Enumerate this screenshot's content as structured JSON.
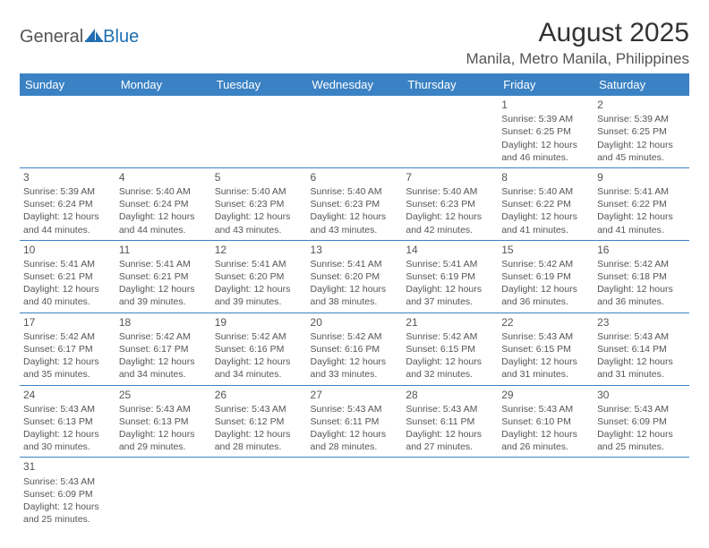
{
  "logo": {
    "general": "General",
    "blue": "Blue"
  },
  "title": "August 2025",
  "location": "Manila, Metro Manila, Philippines",
  "header_bg": "#3b82c4",
  "dayHeaders": [
    "Sunday",
    "Monday",
    "Tuesday",
    "Wednesday",
    "Thursday",
    "Friday",
    "Saturday"
  ],
  "weeks": [
    [
      null,
      null,
      null,
      null,
      null,
      {
        "day": "1",
        "sunrise": "5:39 AM",
        "sunset": "6:25 PM",
        "dl_h": "12",
        "dl_m": "46"
      },
      {
        "day": "2",
        "sunrise": "5:39 AM",
        "sunset": "6:25 PM",
        "dl_h": "12",
        "dl_m": "45"
      }
    ],
    [
      {
        "day": "3",
        "sunrise": "5:39 AM",
        "sunset": "6:24 PM",
        "dl_h": "12",
        "dl_m": "44"
      },
      {
        "day": "4",
        "sunrise": "5:40 AM",
        "sunset": "6:24 PM",
        "dl_h": "12",
        "dl_m": "44"
      },
      {
        "day": "5",
        "sunrise": "5:40 AM",
        "sunset": "6:23 PM",
        "dl_h": "12",
        "dl_m": "43"
      },
      {
        "day": "6",
        "sunrise": "5:40 AM",
        "sunset": "6:23 PM",
        "dl_h": "12",
        "dl_m": "43"
      },
      {
        "day": "7",
        "sunrise": "5:40 AM",
        "sunset": "6:23 PM",
        "dl_h": "12",
        "dl_m": "42"
      },
      {
        "day": "8",
        "sunrise": "5:40 AM",
        "sunset": "6:22 PM",
        "dl_h": "12",
        "dl_m": "41"
      },
      {
        "day": "9",
        "sunrise": "5:41 AM",
        "sunset": "6:22 PM",
        "dl_h": "12",
        "dl_m": "41"
      }
    ],
    [
      {
        "day": "10",
        "sunrise": "5:41 AM",
        "sunset": "6:21 PM",
        "dl_h": "12",
        "dl_m": "40"
      },
      {
        "day": "11",
        "sunrise": "5:41 AM",
        "sunset": "6:21 PM",
        "dl_h": "12",
        "dl_m": "39"
      },
      {
        "day": "12",
        "sunrise": "5:41 AM",
        "sunset": "6:20 PM",
        "dl_h": "12",
        "dl_m": "39"
      },
      {
        "day": "13",
        "sunrise": "5:41 AM",
        "sunset": "6:20 PM",
        "dl_h": "12",
        "dl_m": "38"
      },
      {
        "day": "14",
        "sunrise": "5:41 AM",
        "sunset": "6:19 PM",
        "dl_h": "12",
        "dl_m": "37"
      },
      {
        "day": "15",
        "sunrise": "5:42 AM",
        "sunset": "6:19 PM",
        "dl_h": "12",
        "dl_m": "36"
      },
      {
        "day": "16",
        "sunrise": "5:42 AM",
        "sunset": "6:18 PM",
        "dl_h": "12",
        "dl_m": "36"
      }
    ],
    [
      {
        "day": "17",
        "sunrise": "5:42 AM",
        "sunset": "6:17 PM",
        "dl_h": "12",
        "dl_m": "35"
      },
      {
        "day": "18",
        "sunrise": "5:42 AM",
        "sunset": "6:17 PM",
        "dl_h": "12",
        "dl_m": "34"
      },
      {
        "day": "19",
        "sunrise": "5:42 AM",
        "sunset": "6:16 PM",
        "dl_h": "12",
        "dl_m": "34"
      },
      {
        "day": "20",
        "sunrise": "5:42 AM",
        "sunset": "6:16 PM",
        "dl_h": "12",
        "dl_m": "33"
      },
      {
        "day": "21",
        "sunrise": "5:42 AM",
        "sunset": "6:15 PM",
        "dl_h": "12",
        "dl_m": "32"
      },
      {
        "day": "22",
        "sunrise": "5:43 AM",
        "sunset": "6:15 PM",
        "dl_h": "12",
        "dl_m": "31"
      },
      {
        "day": "23",
        "sunrise": "5:43 AM",
        "sunset": "6:14 PM",
        "dl_h": "12",
        "dl_m": "31"
      }
    ],
    [
      {
        "day": "24",
        "sunrise": "5:43 AM",
        "sunset": "6:13 PM",
        "dl_h": "12",
        "dl_m": "30"
      },
      {
        "day": "25",
        "sunrise": "5:43 AM",
        "sunset": "6:13 PM",
        "dl_h": "12",
        "dl_m": "29"
      },
      {
        "day": "26",
        "sunrise": "5:43 AM",
        "sunset": "6:12 PM",
        "dl_h": "12",
        "dl_m": "28"
      },
      {
        "day": "27",
        "sunrise": "5:43 AM",
        "sunset": "6:11 PM",
        "dl_h": "12",
        "dl_m": "28"
      },
      {
        "day": "28",
        "sunrise": "5:43 AM",
        "sunset": "6:11 PM",
        "dl_h": "12",
        "dl_m": "27"
      },
      {
        "day": "29",
        "sunrise": "5:43 AM",
        "sunset": "6:10 PM",
        "dl_h": "12",
        "dl_m": "26"
      },
      {
        "day": "30",
        "sunrise": "5:43 AM",
        "sunset": "6:09 PM",
        "dl_h": "12",
        "dl_m": "25"
      }
    ],
    [
      {
        "day": "31",
        "sunrise": "5:43 AM",
        "sunset": "6:09 PM",
        "dl_h": "12",
        "dl_m": "25"
      },
      null,
      null,
      null,
      null,
      null,
      null
    ]
  ],
  "labels": {
    "sunrise": "Sunrise:",
    "sunset": "Sunset:",
    "daylight1": "Daylight:",
    "hours": "hours",
    "and": "and",
    "minutes": "minutes."
  }
}
